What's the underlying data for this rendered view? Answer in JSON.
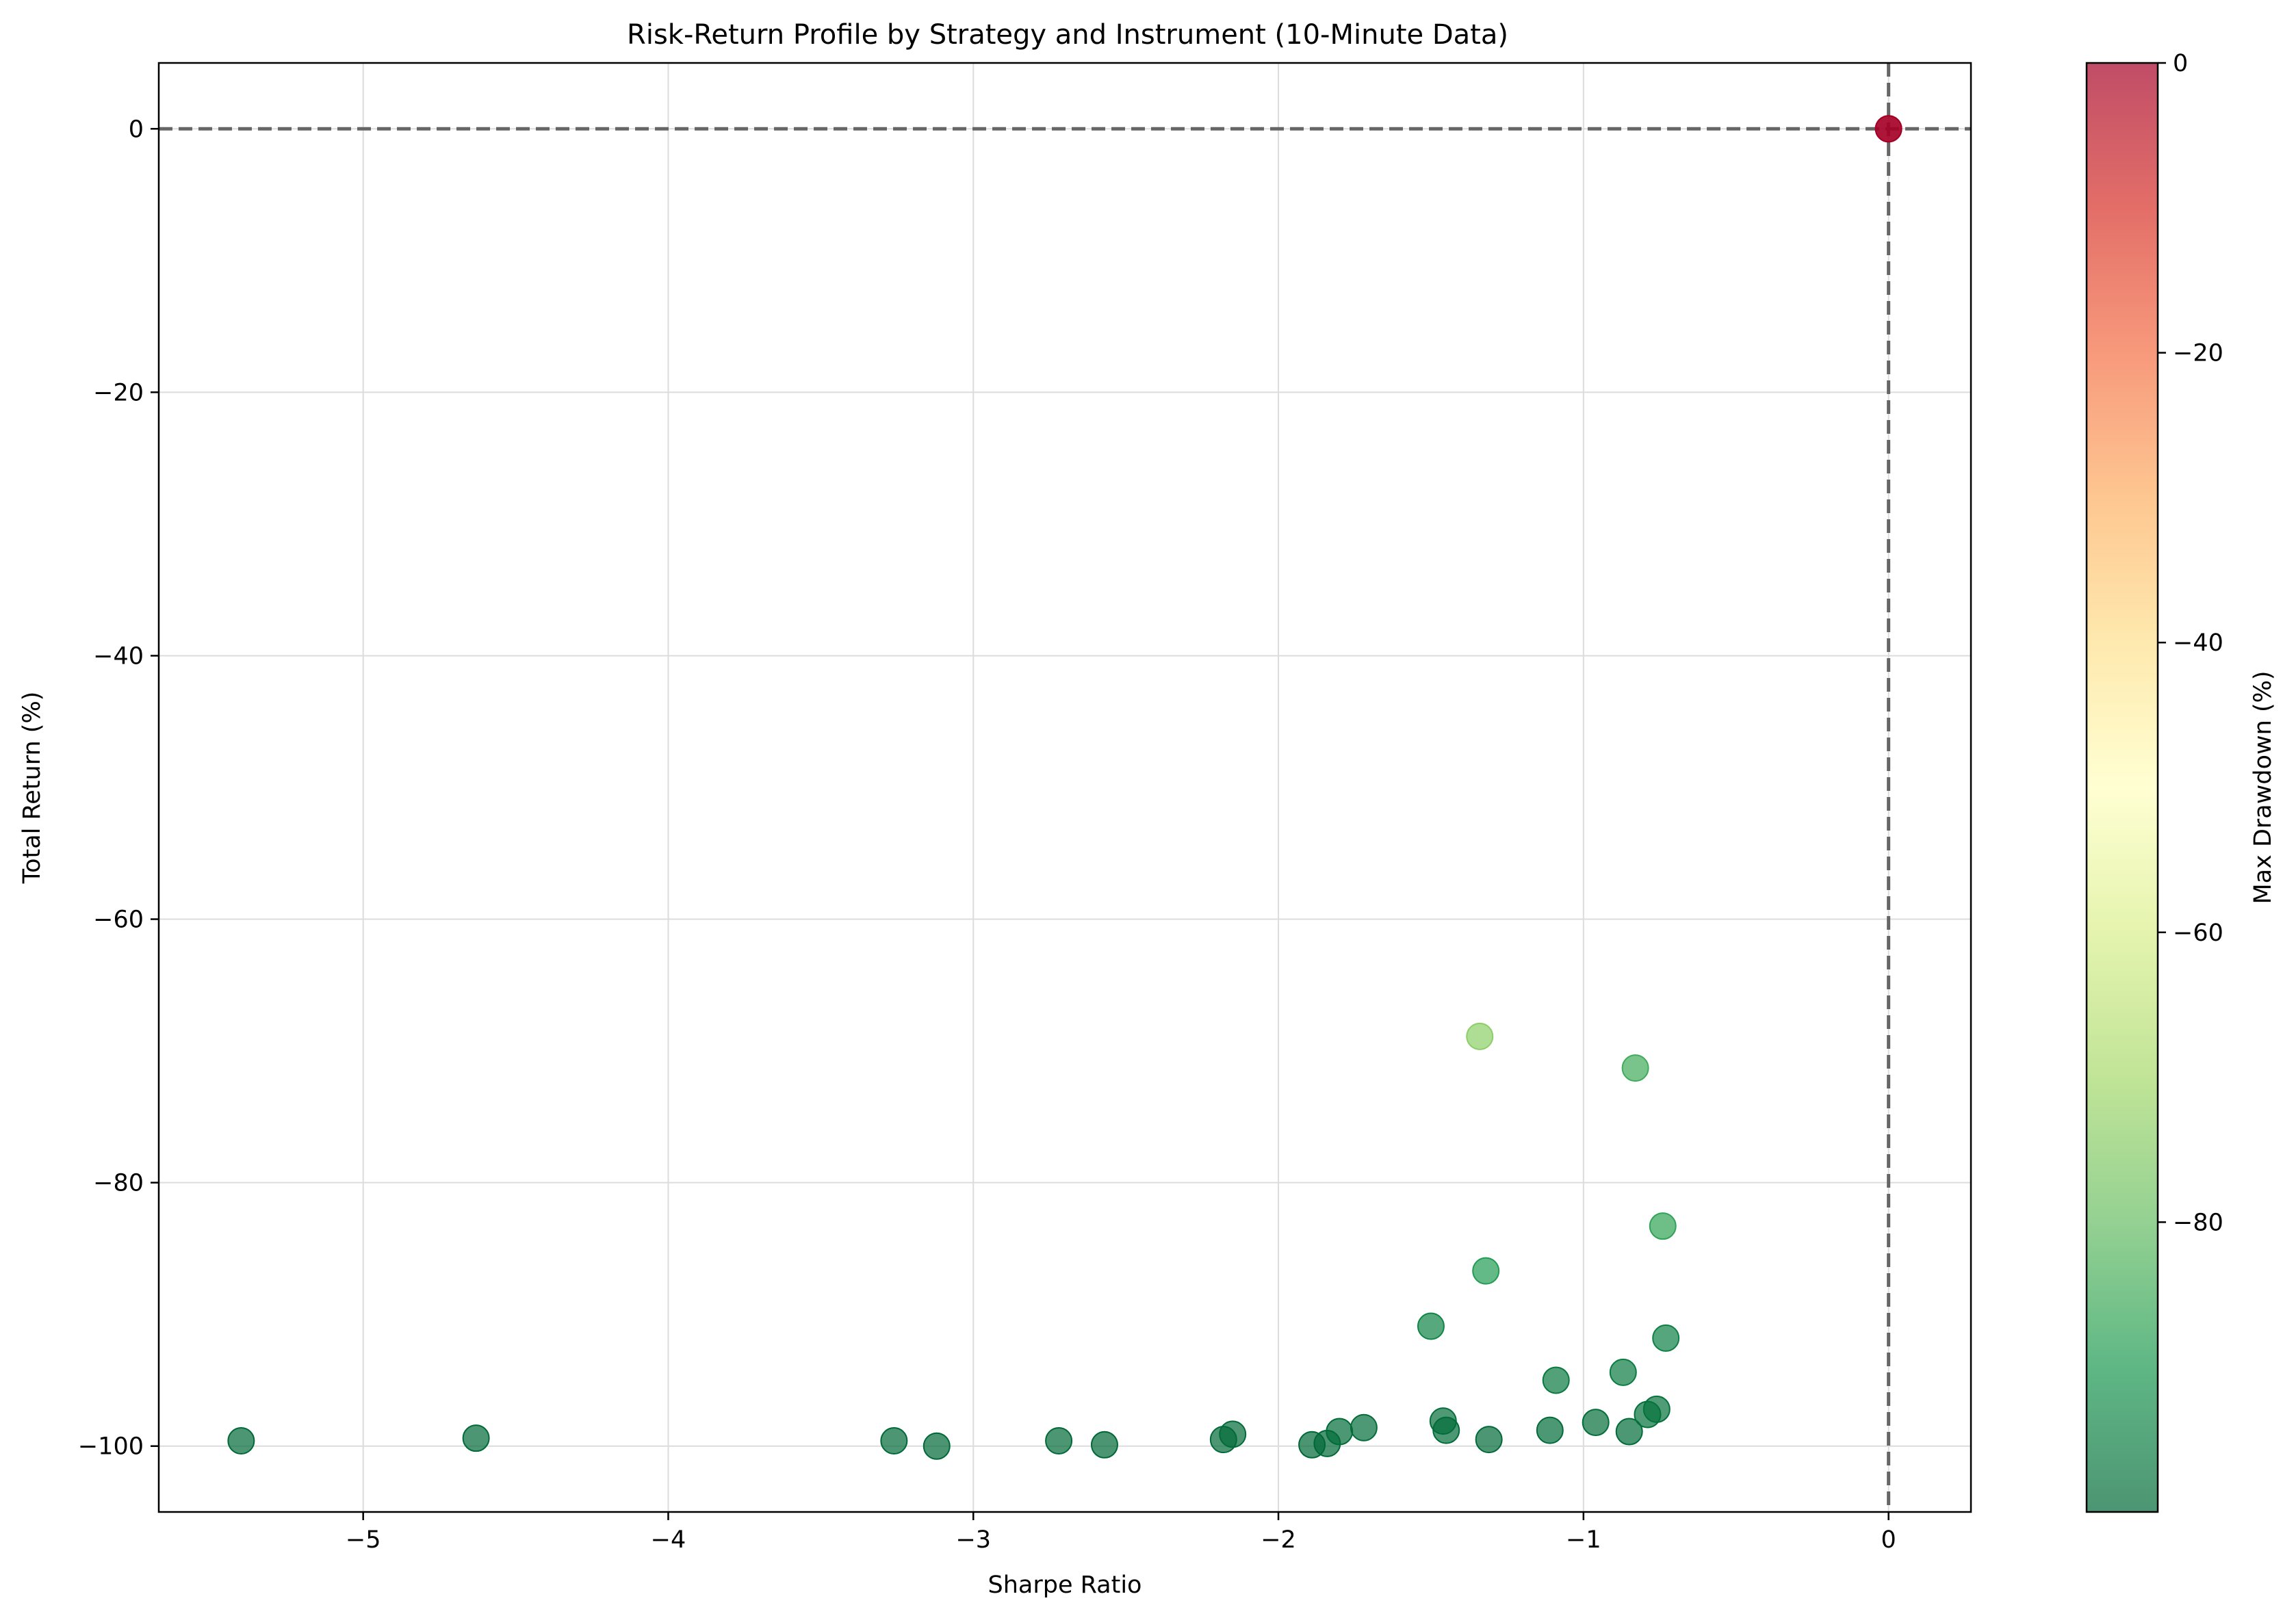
{
  "chart_data": {
    "type": "scatter",
    "title": "Risk-Return Profile by Strategy and Instrument (10-Minute Data)",
    "xlabel": "Sharpe Ratio",
    "ylabel": "Total Return (%)",
    "xlim": [
      -5.67,
      0.27
    ],
    "ylim": [
      -105,
      5
    ],
    "xticks": [
      {
        "value": -5,
        "label": "−5"
      },
      {
        "value": -4,
        "label": "−4"
      },
      {
        "value": -3,
        "label": "−3"
      },
      {
        "value": -2,
        "label": "−2"
      },
      {
        "value": -1,
        "label": "−1"
      },
      {
        "value": 0,
        "label": "0"
      }
    ],
    "yticks": [
      {
        "value": 0,
        "label": "0"
      },
      {
        "value": -20,
        "label": "−20"
      },
      {
        "value": -40,
        "label": "−40"
      },
      {
        "value": -60,
        "label": "−60"
      },
      {
        "value": -80,
        "label": "−80"
      },
      {
        "value": -100,
        "label": "−100"
      }
    ],
    "grid": true,
    "reference_lines": {
      "x": 0,
      "y": 0,
      "style": "dashed",
      "color": "#666666"
    },
    "colorbar": {
      "label": "Max Drawdown (%)",
      "range": [
        -100,
        0
      ],
      "colormap": "RdYlGn_r",
      "stops": [
        "#006837",
        "#1a9850",
        "#66bd63",
        "#a6d96a",
        "#d9ef8b",
        "#ffffbf",
        "#fee08b",
        "#fdae61",
        "#f46d43",
        "#d73027",
        "#a50026"
      ],
      "ticks": [
        {
          "value": 0,
          "label": "0"
        },
        {
          "value": -20,
          "label": "−20"
        },
        {
          "value": -40,
          "label": "−40"
        },
        {
          "value": -60,
          "label": "−60"
        },
        {
          "value": -80,
          "label": "−80"
        }
      ]
    },
    "marker_alpha": 0.7,
    "points": [
      {
        "x": -5.4,
        "y": -99.6,
        "drawdown": -99.7
      },
      {
        "x": -4.63,
        "y": -99.4,
        "drawdown": -99.6
      },
      {
        "x": -3.26,
        "y": -99.6,
        "drawdown": -99.7
      },
      {
        "x": -3.12,
        "y": -100.0,
        "drawdown": -100.0
      },
      {
        "x": -2.72,
        "y": -99.6,
        "drawdown": -99.7
      },
      {
        "x": -2.57,
        "y": -99.9,
        "drawdown": -99.9
      },
      {
        "x": -2.18,
        "y": -99.5,
        "drawdown": -99.6
      },
      {
        "x": -2.15,
        "y": -99.1,
        "drawdown": -99.3
      },
      {
        "x": -1.89,
        "y": -99.9,
        "drawdown": -99.9
      },
      {
        "x": -1.84,
        "y": -99.8,
        "drawdown": -99.9
      },
      {
        "x": -1.8,
        "y": -98.9,
        "drawdown": -99.1
      },
      {
        "x": -1.72,
        "y": -98.6,
        "drawdown": -98.9
      },
      {
        "x": -1.5,
        "y": -90.9,
        "drawdown": -94.0
      },
      {
        "x": -1.46,
        "y": -98.1,
        "drawdown": -98.6
      },
      {
        "x": -1.45,
        "y": -98.8,
        "drawdown": -99.1
      },
      {
        "x": -1.34,
        "y": -68.9,
        "drawdown": -74.0
      },
      {
        "x": -1.32,
        "y": -86.7,
        "drawdown": -89.0
      },
      {
        "x": -1.31,
        "y": -99.5,
        "drawdown": -99.6
      },
      {
        "x": -1.11,
        "y": -98.8,
        "drawdown": -99.1
      },
      {
        "x": -1.09,
        "y": -95.0,
        "drawdown": -96.5
      },
      {
        "x": -0.96,
        "y": -98.2,
        "drawdown": -98.6
      },
      {
        "x": -0.87,
        "y": -94.4,
        "drawdown": -96.0
      },
      {
        "x": -0.85,
        "y": -98.9,
        "drawdown": -99.2
      },
      {
        "x": -0.83,
        "y": -71.3,
        "drawdown": -85.0
      },
      {
        "x": -0.79,
        "y": -97.6,
        "drawdown": -98.3
      },
      {
        "x": -0.76,
        "y": -97.2,
        "drawdown": -98.0
      },
      {
        "x": -0.74,
        "y": -83.3,
        "drawdown": -87.0
      },
      {
        "x": -0.73,
        "y": -91.8,
        "drawdown": -95.0
      },
      {
        "x": 0.0,
        "y": 0.0,
        "drawdown": 0.0
      },
      {
        "x": 0.0,
        "y": 0.0,
        "drawdown": 0.0
      }
    ]
  }
}
